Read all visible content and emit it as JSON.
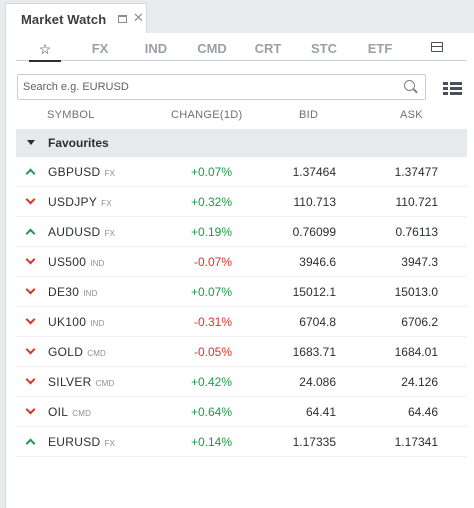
{
  "window": {
    "tab_title": "Market Watch"
  },
  "categories": [
    "FX",
    "IND",
    "CMD",
    "CRT",
    "STC",
    "ETF"
  ],
  "search": {
    "placeholder": "Search e.g. EURUSD",
    "value": ""
  },
  "columns": {
    "symbol": "SYMBOL",
    "change": "CHANGE(1D)",
    "bid": "BID",
    "ask": "ASK"
  },
  "group": {
    "label": "Favourites"
  },
  "colors": {
    "positive": "#1f9a4c",
    "negative": "#d3362f"
  },
  "rows": [
    {
      "symbol": "GBPUSD",
      "type": "FX",
      "direction": "up",
      "change": "+0.07%",
      "bid": "1.37464",
      "ask": "1.37477"
    },
    {
      "symbol": "USDJPY",
      "type": "FX",
      "direction": "down",
      "change": "+0.32%",
      "bid": "110.713",
      "ask": "110.721"
    },
    {
      "symbol": "AUDUSD",
      "type": "FX",
      "direction": "up",
      "change": "+0.19%",
      "bid": "0.76099",
      "ask": "0.76113"
    },
    {
      "symbol": "US500",
      "type": "IND",
      "direction": "down",
      "change": "-0.07%",
      "bid": "3946.6",
      "ask": "3947.3"
    },
    {
      "symbol": "DE30",
      "type": "IND",
      "direction": "down",
      "change": "+0.07%",
      "bid": "15012.1",
      "ask": "15013.0"
    },
    {
      "symbol": "UK100",
      "type": "IND",
      "direction": "down",
      "change": "-0.31%",
      "bid": "6704.8",
      "ask": "6706.2"
    },
    {
      "symbol": "GOLD",
      "type": "CMD",
      "direction": "down",
      "change": "-0.05%",
      "bid": "1683.71",
      "ask": "1684.01"
    },
    {
      "symbol": "SILVER",
      "type": "CMD",
      "direction": "down",
      "change": "+0.42%",
      "bid": "24.086",
      "ask": "24.126"
    },
    {
      "symbol": "OIL",
      "type": "CMD",
      "direction": "down",
      "change": "+0.64%",
      "bid": "64.41",
      "ask": "64.46"
    },
    {
      "symbol": "EURUSD",
      "type": "FX",
      "direction": "up",
      "change": "+0.14%",
      "bid": "1.17335",
      "ask": "1.17341"
    }
  ]
}
